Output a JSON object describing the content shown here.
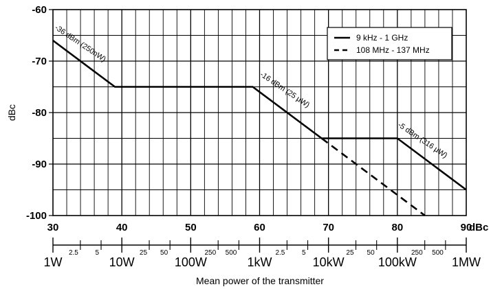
{
  "chart_data": {
    "type": "line",
    "xlim": [
      30,
      90
    ],
    "ylim": [
      -100,
      -60
    ],
    "x_unit_label": "dBc",
    "ylabel": "dBc",
    "xlabel": "Mean power of the transmitter",
    "y_ticks": [
      -60,
      -70,
      -80,
      -90,
      -100
    ],
    "y_tick_labels": [
      "-60",
      "-70",
      "-80",
      "-90",
      "-100"
    ],
    "x_ticks": [
      30,
      40,
      50,
      60,
      70,
      80,
      90
    ],
    "x_tick_labels": [
      "30",
      "40",
      "50",
      "60",
      "70",
      "80",
      "90"
    ],
    "power_major_ticks": [
      {
        "x": 30,
        "label": "1W"
      },
      {
        "x": 40,
        "label": "10W"
      },
      {
        "x": 50,
        "label": "100W"
      },
      {
        "x": 60,
        "label": "1kW"
      },
      {
        "x": 70,
        "label": "10kW"
      },
      {
        "x": 80,
        "label": "100kW"
      },
      {
        "x": 90,
        "label": "1MW"
      }
    ],
    "power_minor_ticks": [
      {
        "x": 33.98,
        "label": "2.5"
      },
      {
        "x": 36.99,
        "label": "5"
      },
      {
        "x": 43.98,
        "label": "25"
      },
      {
        "x": 46.99,
        "label": "50"
      },
      {
        "x": 53.98,
        "label": "250"
      },
      {
        "x": 56.99,
        "label": "500"
      },
      {
        "x": 63.98,
        "label": "2.5"
      },
      {
        "x": 66.99,
        "label": "5"
      },
      {
        "x": 73.98,
        "label": "25"
      },
      {
        "x": 76.99,
        "label": "50"
      },
      {
        "x": 83.98,
        "label": "250"
      },
      {
        "x": 86.99,
        "label": "500"
      }
    ],
    "grid": true,
    "legend_position": "top-right",
    "series": [
      {
        "name": "9 kHz - 1 GHz",
        "style": "solid",
        "points": [
          [
            30,
            -66
          ],
          [
            39,
            -75
          ],
          [
            59,
            -75
          ],
          [
            69,
            -85
          ],
          [
            80,
            -85
          ],
          [
            90,
            -95
          ]
        ]
      },
      {
        "name": "108 MHz - 137 MHz",
        "style": "dashed",
        "points": [
          [
            69,
            -85
          ],
          [
            84,
            -100
          ]
        ]
      }
    ],
    "annotations": [
      {
        "text": "-36 dBm (250nW)",
        "x": 30.2,
        "y": -63.7,
        "angle": 34
      },
      {
        "text": "-16 dBm (25 µW)",
        "x": 60.0,
        "y": -72.8,
        "angle": 34
      },
      {
        "text": "-5 dBm (316 µW)",
        "x": 80.0,
        "y": -82.6,
        "angle": 34
      }
    ]
  }
}
